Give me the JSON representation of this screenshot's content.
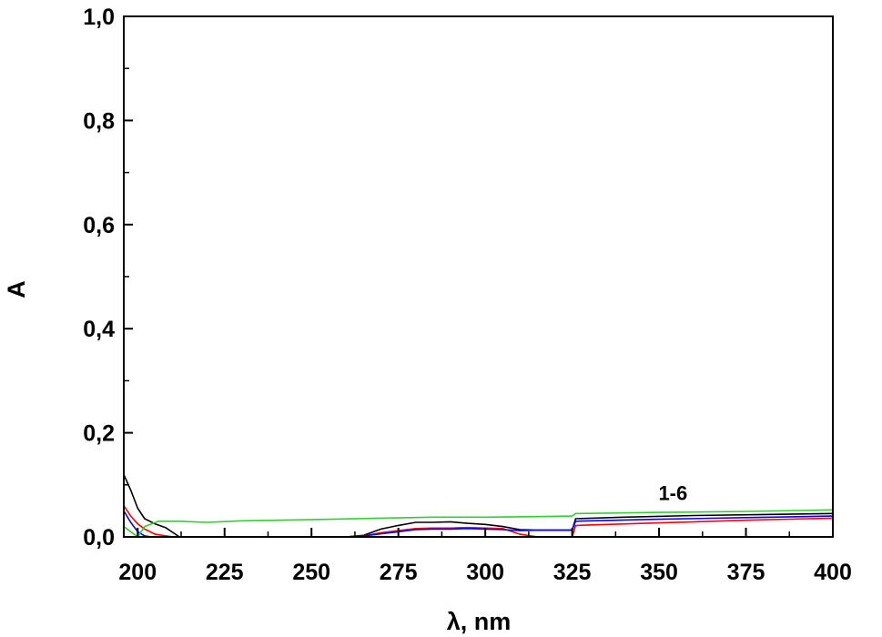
{
  "chart_data": {
    "type": "line",
    "title": "",
    "xlabel": "λ, nm",
    "ylabel": "A",
    "xlim": [
      196,
      400
    ],
    "ylim": [
      0,
      1.0
    ],
    "x_ticks": [
      {
        "value": 200,
        "label": "200"
      },
      {
        "value": 225,
        "label": "225"
      },
      {
        "value": 250,
        "label": "250"
      },
      {
        "value": 275,
        "label": "275"
      },
      {
        "value": 300,
        "label": "300"
      },
      {
        "value": 325,
        "label": "325"
      },
      {
        "value": 350,
        "label": "350"
      },
      {
        "value": 375,
        "label": "375"
      },
      {
        "value": 400,
        "label": "400"
      }
    ],
    "y_ticks": [
      {
        "value": 0.0,
        "label": "0,0"
      },
      {
        "value": 0.2,
        "label": "0,2"
      },
      {
        "value": 0.4,
        "label": "0,4"
      },
      {
        "value": 0.6,
        "label": "0,6"
      },
      {
        "value": 0.8,
        "label": "0,8"
      },
      {
        "value": 1.0,
        "label": "1,0"
      }
    ],
    "grid": false,
    "legend": "none",
    "annotations": [
      {
        "text": "1-6",
        "x": 354,
        "y": 0.083
      }
    ],
    "series": [
      {
        "color": "#000000",
        "x": [
          196,
          198,
          200,
          202,
          205,
          208,
          212,
          225,
          240,
          260,
          265,
          270,
          275,
          280,
          285,
          290,
          295,
          300,
          305,
          310,
          315,
          320,
          325,
          326,
          340,
          360,
          380,
          400
        ],
        "y": [
          0.12,
          0.09,
          0.055,
          0.035,
          0.025,
          0.018,
          0.0,
          0.0,
          0.0,
          0.0,
          0.003,
          0.015,
          0.022,
          0.028,
          0.028,
          0.029,
          0.026,
          0.024,
          0.02,
          0.014,
          0.013,
          0.013,
          0.013,
          0.035,
          0.038,
          0.041,
          0.043,
          0.045
        ]
      },
      {
        "color": "#ff0000",
        "x": [
          196,
          198,
          200,
          202,
          205,
          210,
          260,
          265,
          270,
          275,
          280,
          285,
          290,
          295,
          300,
          305,
          310,
          315,
          320,
          325,
          326,
          350,
          375,
          400
        ],
        "y": [
          0.06,
          0.04,
          0.025,
          0.015,
          0.005,
          0.0,
          0.0,
          0.002,
          0.008,
          0.012,
          0.016,
          0.017,
          0.017,
          0.018,
          0.017,
          0.016,
          0.005,
          0.0,
          0.0,
          0.0,
          0.022,
          0.027,
          0.032,
          0.036
        ]
      },
      {
        "color": "#0000ff",
        "x": [
          196,
          198,
          200,
          202,
          204,
          260,
          265,
          270,
          275,
          280,
          285,
          290,
          295,
          300,
          305,
          310,
          315,
          320,
          325,
          326,
          350,
          375,
          400
        ],
        "y": [
          0.05,
          0.028,
          0.01,
          0.002,
          0.0,
          0.0,
          0.002,
          0.006,
          0.01,
          0.014,
          0.015,
          0.015,
          0.016,
          0.015,
          0.014,
          0.012,
          0.013,
          0.013,
          0.013,
          0.03,
          0.034,
          0.037,
          0.04
        ]
      },
      {
        "color": "#33cc33",
        "x": [
          196,
          198,
          200,
          202,
          206,
          212,
          220,
          230,
          250,
          270,
          285,
          300,
          315,
          325,
          326,
          350,
          375,
          400
        ],
        "y": [
          0.02,
          0.01,
          0.0,
          0.02,
          0.03,
          0.03,
          0.028,
          0.031,
          0.033,
          0.036,
          0.038,
          0.038,
          0.039,
          0.04,
          0.045,
          0.047,
          0.049,
          0.052
        ]
      }
    ]
  }
}
